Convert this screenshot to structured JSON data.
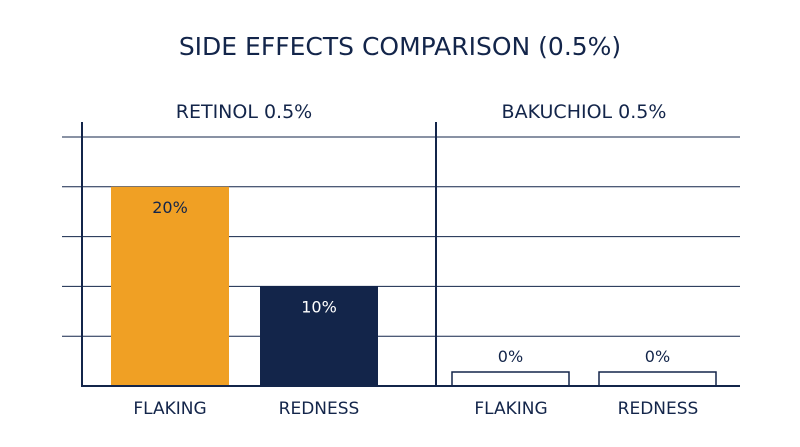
{
  "chart_data": {
    "type": "bar",
    "title": "SIDE EFFECTS COMPARISON (0.5%)",
    "panels": [
      {
        "title": "RETINOL 0.5%",
        "categories": [
          "FLAKING",
          "REDNESS"
        ],
        "values": [
          20,
          10
        ],
        "data_labels": [
          "20%",
          "10%"
        ]
      },
      {
        "title": "BAKUCHIOL 0.5%",
        "categories": [
          "FLAKING",
          "REDNESS"
        ],
        "values": [
          0,
          0
        ],
        "data_labels": [
          "0%",
          "0%"
        ]
      }
    ],
    "ylim": [
      0,
      25
    ],
    "grid": true,
    "colors": {
      "flaking": "#f0a024",
      "redness": "#13254a",
      "zero_bar_outline": "#13254a",
      "axis": "#13254a",
      "grid": "#13254a",
      "text": "#13254a"
    }
  }
}
